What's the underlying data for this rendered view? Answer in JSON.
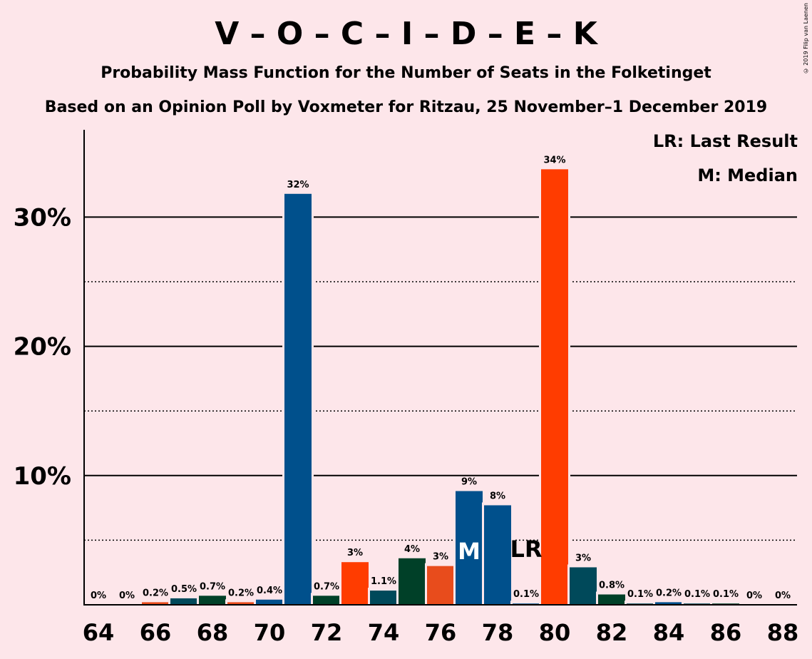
{
  "title": "V – O – C – I – D – E – K",
  "subtitle": "Probability Mass Function for the Number of Seats in the Folketinget",
  "subtitle2": "Based on an Opinion Poll by Voxmeter for Ritzau, 25 November–1 December 2019",
  "copyright": "© 2019 Filip van Laenen",
  "legend": {
    "lr": "LR: Last Result",
    "m": "M: Median"
  },
  "colors": {
    "background": "#fde6ea",
    "blue": "#00508c",
    "red": "#ff3c00",
    "orange": "#e84c1c",
    "teal": "#00495a",
    "darkgreen": "#004028"
  },
  "chart_data": {
    "type": "bar",
    "x": [
      64,
      65,
      66,
      67,
      68,
      69,
      70,
      71,
      72,
      73,
      74,
      75,
      76,
      77,
      78,
      79,
      80,
      81,
      82,
      83,
      84,
      85,
      86,
      87,
      88
    ],
    "values": [
      0,
      0,
      0.2,
      0.5,
      0.7,
      0.2,
      0.4,
      31.8,
      0.7,
      3.3,
      1.1,
      3.6,
      3.0,
      8.8,
      7.7,
      0.1,
      33.7,
      2.9,
      0.8,
      0.1,
      0.2,
      0.1,
      0.1,
      0,
      0
    ],
    "labels": [
      "0%",
      "0%",
      "0.2%",
      "0.5%",
      "0.7%",
      "0.2%",
      "0.4%",
      "32%",
      "0.7%",
      "3%",
      "1.1%",
      "4%",
      "3%",
      "9%",
      "8%",
      "0.1%",
      "34%",
      "3%",
      "0.8%",
      "0.1%",
      "0.2%",
      "0.1%",
      "0.1%",
      "0%",
      "0%"
    ],
    "bar_colors": [
      "#00508c",
      "#00508c",
      "#e84c1c",
      "#00495a",
      "#004028",
      "#e84c1c",
      "#00508c",
      "#00508c",
      "#004028",
      "#ff3c00",
      "#00495a",
      "#004028",
      "#e84c1c",
      "#00508c",
      "#00508c",
      "#00508c",
      "#ff3c00",
      "#00495a",
      "#004028",
      "#00495a",
      "#00508c",
      "#00495a",
      "#004028",
      "#00508c",
      "#00508c"
    ],
    "xticks": [
      "64",
      "66",
      "68",
      "70",
      "72",
      "74",
      "76",
      "78",
      "80",
      "82",
      "84",
      "86",
      "88"
    ],
    "yticks": [
      "10%",
      "20%",
      "30%"
    ],
    "ylim": [
      0,
      36.6
    ],
    "grid_solid": [
      10,
      20,
      30
    ],
    "grid_dotted": [
      5,
      15,
      25
    ],
    "median_x": 77,
    "median_mark": "M",
    "last_result_x": 79,
    "last_result_mark": "LR"
  }
}
